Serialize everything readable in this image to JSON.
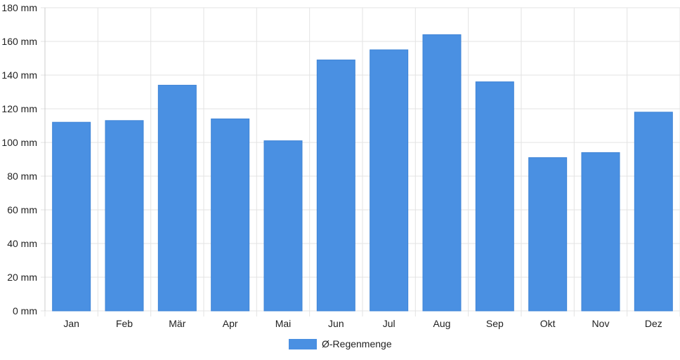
{
  "chart_data": {
    "type": "bar",
    "categories": [
      "Jan",
      "Feb",
      "Mär",
      "Apr",
      "Mai",
      "Jun",
      "Jul",
      "Aug",
      "Sep",
      "Okt",
      "Nov",
      "Dez"
    ],
    "series": [
      {
        "name": "Ø-Regenmenge",
        "values": [
          112,
          113,
          134,
          114,
          101,
          149,
          155,
          164,
          136,
          91,
          94,
          118
        ],
        "color": "#4a90e2"
      }
    ],
    "ylim": [
      0,
      180
    ],
    "yticks": [
      0,
      20,
      40,
      60,
      80,
      100,
      120,
      140,
      160,
      180
    ],
    "ytick_labels": [
      "0 mm",
      "20 mm",
      "40 mm",
      "60 mm",
      "80 mm",
      "100 mm",
      "120 mm",
      "140 mm",
      "160 mm",
      "180 mm"
    ],
    "grid": true,
    "legend_position": "bottom",
    "colors": {
      "bar": "#4a90e2",
      "grid": "#e3e3e3",
      "axis": "#cccccc",
      "text": "#222222"
    }
  }
}
